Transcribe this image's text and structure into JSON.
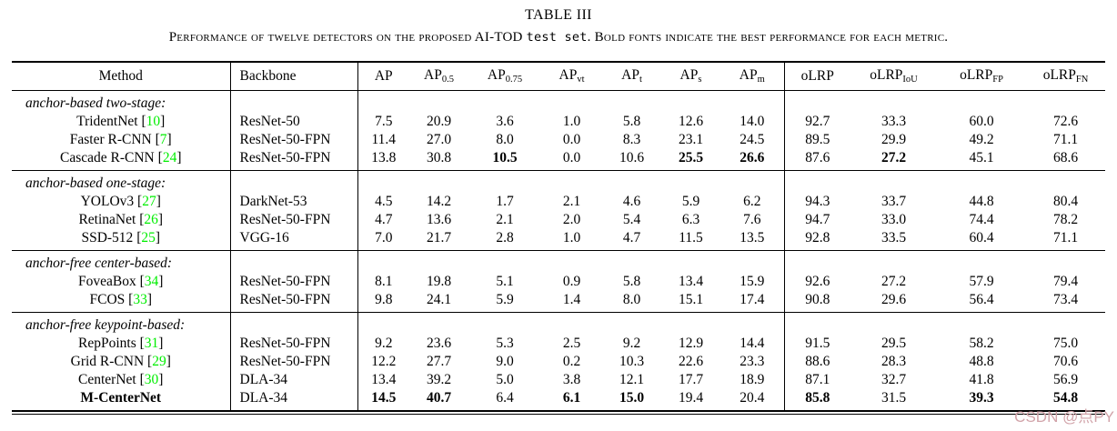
{
  "title": "TABLE III",
  "caption": {
    "part1": "Performance of twelve detectors on the proposed AI-TOD ",
    "mono": "test set",
    "part2": ". Bold fonts indicate the best performance for each metric."
  },
  "colors": {
    "citation_green": "#00ee00",
    "watermark_pink": "#d1a3a9"
  },
  "watermark": "CSDN @点PY",
  "table": {
    "headers": [
      {
        "base": "Method"
      },
      {
        "base": "Backbone"
      },
      {
        "base": "AP"
      },
      {
        "base": "AP",
        "sub": "0.5"
      },
      {
        "base": "AP",
        "sub": "0.75"
      },
      {
        "base": "AP",
        "sub": "vt"
      },
      {
        "base": "AP",
        "sub": "t"
      },
      {
        "base": "AP",
        "sub": "s"
      },
      {
        "base": "AP",
        "sub": "m"
      },
      {
        "base": "oLRP"
      },
      {
        "base": "oLRP",
        "sub": "IoU"
      },
      {
        "base": "oLRP",
        "sub": "FP"
      },
      {
        "base": "oLRP",
        "sub": "FN"
      }
    ],
    "groups": [
      {
        "label": "anchor-based two-stage:",
        "rows": [
          {
            "method": "TridentNet",
            "cite": "10",
            "backbone": "ResNet-50",
            "values": [
              "7.5",
              "20.9",
              "3.6",
              "1.0",
              "5.8",
              "12.6",
              "14.0",
              "92.7",
              "33.3",
              "60.0",
              "72.6"
            ],
            "bold_values": []
          },
          {
            "method": "Faster R-CNN",
            "cite": "7",
            "backbone": "ResNet-50-FPN",
            "values": [
              "11.4",
              "27.0",
              "8.0",
              "0.0",
              "8.3",
              "23.1",
              "24.5",
              "89.5",
              "29.9",
              "49.2",
              "71.1"
            ],
            "bold_values": []
          },
          {
            "method": "Cascade R-CNN",
            "cite": "24",
            "backbone": "ResNet-50-FPN",
            "values": [
              "13.8",
              "30.8",
              "10.5",
              "0.0",
              "10.6",
              "25.5",
              "26.6",
              "87.6",
              "27.2",
              "45.1",
              "68.6"
            ],
            "bold_values": [
              2,
              5,
              6,
              8
            ]
          }
        ]
      },
      {
        "label": "anchor-based one-stage:",
        "rows": [
          {
            "method": "YOLOv3",
            "cite": "27",
            "backbone": "DarkNet-53",
            "values": [
              "4.5",
              "14.2",
              "1.7",
              "2.1",
              "4.6",
              "5.9",
              "6.2",
              "94.3",
              "33.7",
              "44.8",
              "80.4"
            ],
            "bold_values": []
          },
          {
            "method": "RetinaNet",
            "cite": "26",
            "backbone": "ResNet-50-FPN",
            "values": [
              "4.7",
              "13.6",
              "2.1",
              "2.0",
              "5.4",
              "6.3",
              "7.6",
              "94.7",
              "33.0",
              "74.4",
              "78.2"
            ],
            "bold_values": []
          },
          {
            "method": "SSD-512",
            "cite": "25",
            "backbone": "VGG-16",
            "values": [
              "7.0",
              "21.7",
              "2.8",
              "1.0",
              "4.7",
              "11.5",
              "13.5",
              "92.8",
              "33.5",
              "60.4",
              "71.1"
            ],
            "bold_values": []
          }
        ]
      },
      {
        "label": "anchor-free center-based:",
        "rows": [
          {
            "method": "FoveaBox",
            "cite": "34",
            "backbone": "ResNet-50-FPN",
            "values": [
              "8.1",
              "19.8",
              "5.1",
              "0.9",
              "5.8",
              "13.4",
              "15.9",
              "92.6",
              "27.2",
              "57.9",
              "79.4"
            ],
            "bold_values": []
          },
          {
            "method": "FCOS",
            "cite": "33",
            "backbone": "ResNet-50-FPN",
            "values": [
              "9.8",
              "24.1",
              "5.9",
              "1.4",
              "8.0",
              "15.1",
              "17.4",
              "90.8",
              "29.6",
              "56.4",
              "73.4"
            ],
            "bold_values": []
          }
        ]
      },
      {
        "label": "anchor-free keypoint-based:",
        "rows": [
          {
            "method": "RepPoints",
            "cite": "31",
            "backbone": "ResNet-50-FPN",
            "values": [
              "9.2",
              "23.6",
              "5.3",
              "2.5",
              "9.2",
              "12.9",
              "14.4",
              "91.5",
              "29.5",
              "58.2",
              "75.0"
            ],
            "bold_values": []
          },
          {
            "method": "Grid R-CNN",
            "cite": "29",
            "backbone": "ResNet-50-FPN",
            "values": [
              "12.2",
              "27.7",
              "9.0",
              "0.2",
              "10.3",
              "22.6",
              "23.3",
              "88.6",
              "28.3",
              "48.8",
              "70.6"
            ],
            "bold_values": []
          },
          {
            "method": "CenterNet",
            "cite": "30",
            "backbone": "DLA-34",
            "values": [
              "13.4",
              "39.2",
              "5.0",
              "3.8",
              "12.1",
              "17.7",
              "18.9",
              "87.1",
              "32.7",
              "41.8",
              "56.9"
            ],
            "bold_values": []
          },
          {
            "method": "M-CenterNet",
            "bold": true,
            "backbone": "DLA-34",
            "values": [
              "14.5",
              "40.7",
              "6.4",
              "6.1",
              "15.0",
              "19.4",
              "20.4",
              "85.8",
              "31.5",
              "39.3",
              "54.8"
            ],
            "bold_values": [
              0,
              1,
              3,
              4,
              7,
              9,
              10
            ]
          }
        ]
      }
    ]
  }
}
